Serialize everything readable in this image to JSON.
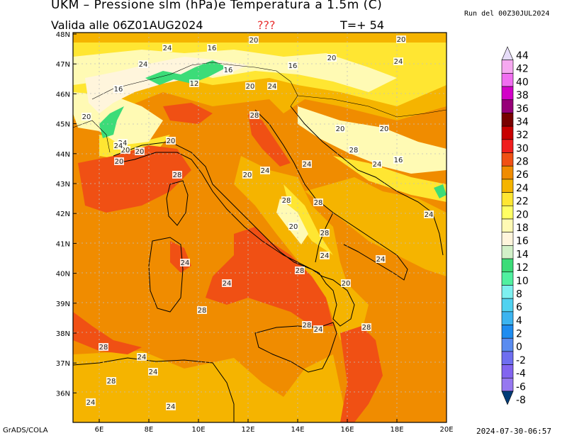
{
  "header": {
    "title": "UKM – Pressione slm (hPa)e Temperatura a 1.5m (C)",
    "valid": "Valida alle 06Z01AUG2024",
    "unknown": "???",
    "timestep": "T=+ 54",
    "run": "Run del 00Z30JUL2024"
  },
  "footer": {
    "left": "GrADS/COLA",
    "right": "2024-07-30-06:57"
  },
  "axes": {
    "lat_ticks": [
      "48N",
      "47N",
      "46N",
      "45N",
      "44N",
      "43N",
      "42N",
      "41N",
      "40N",
      "39N",
      "38N",
      "37N",
      "36N"
    ],
    "lon_ticks": [
      "6E",
      "8E",
      "10E",
      "12E",
      "14E",
      "16E",
      "18E",
      "20E"
    ]
  },
  "colorbar": {
    "levels": [
      "44",
      "42",
      "40",
      "38",
      "36",
      "34",
      "32",
      "30",
      "28",
      "26",
      "24",
      "22",
      "20",
      "18",
      "16",
      "14",
      "12",
      "10",
      "8",
      "6",
      "4",
      "2",
      "0",
      "-2",
      "-4",
      "-6",
      "-8"
    ],
    "colors": [
      "#e6dcf8",
      "#f5a8f0",
      "#f06ef0",
      "#d200c8",
      "#960078",
      "#780000",
      "#c80000",
      "#f01e1e",
      "#f05014",
      "#f08c00",
      "#f5b400",
      "#ffe632",
      "#ffff64",
      "#fffab4",
      "#fff5dc",
      "#d2f0c8",
      "#3cdc78",
      "#50f0a0",
      "#7df0f0",
      "#50d2f0",
      "#3cb4f0",
      "#1e8cf0",
      "#5a8cf0",
      "#6e6ef0",
      "#8264f0",
      "#9678f0",
      "#003c78"
    ]
  },
  "map": {
    "contour_labels": [
      "24",
      "16",
      "20",
      "20",
      "24",
      "16",
      "16",
      "20",
      "24",
      "16",
      "12",
      "20",
      "24",
      "20",
      "20",
      "20",
      "20",
      "28",
      "20",
      "20",
      "24",
      "28",
      "16",
      "24",
      "28",
      "20",
      "24",
      "24",
      "28",
      "28",
      "20",
      "28",
      "24",
      "28",
      "24",
      "20",
      "24",
      "24",
      "28",
      "24",
      "20",
      "28",
      "28",
      "24",
      "28",
      "28",
      "24",
      "24",
      "24",
      "24",
      "24"
    ]
  }
}
